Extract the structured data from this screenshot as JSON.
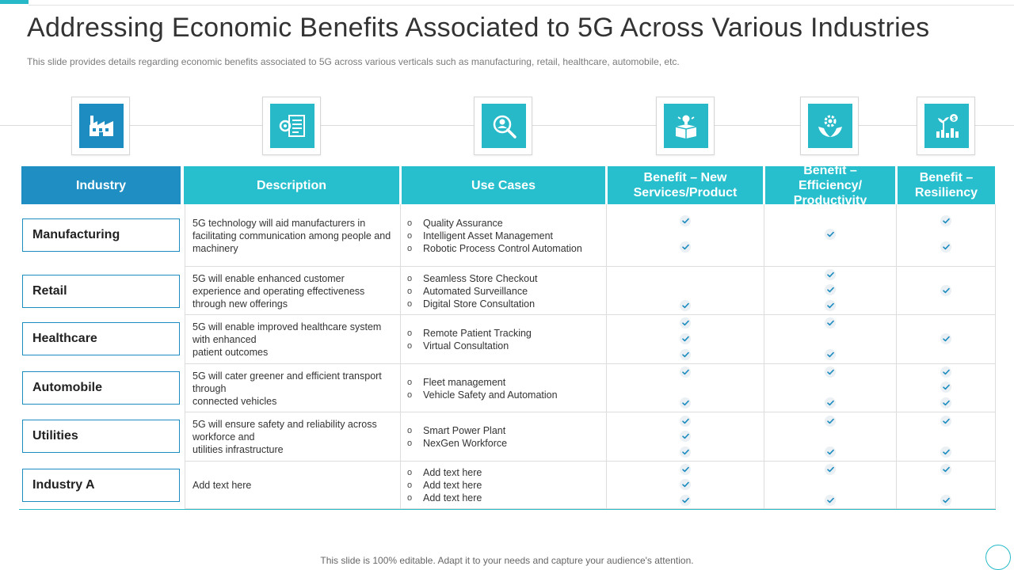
{
  "title": "Addressing Economic Benefits Associated to 5G Across Various Industries",
  "subtitle": "This slide provides details regarding economic benefits associated to 5G across various verticals such as manufacturing, retail, healthcare, automobile, etc.",
  "icons": [
    "factory-icon",
    "document-settings-icon",
    "magnifier-person-icon",
    "idea-box-icon",
    "hands-gear-icon",
    "plant-money-icon"
  ],
  "headers": {
    "industry": "Industry",
    "description": "Description",
    "use_cases": "Use Cases",
    "benefit_new": "Benefit – New Services/Product",
    "benefit_efficiency": "Benefit – Efficiency/ Productivity",
    "benefit_resiliency": "Benefit – Resiliency"
  },
  "rows": [
    {
      "industry": "Manufacturing",
      "description": [
        "5G technology will aid manufacturers in facilitating communication among people and machinery"
      ],
      "use_cases": [
        "Quality Assurance",
        "Intelligent Asset Management",
        "Robotic Process Control Automation"
      ],
      "checks": {
        "new": 2,
        "efficiency": 1,
        "resiliency": 2
      }
    },
    {
      "industry": "Retail",
      "description": [
        "5G will enable enhanced customer experience and operating effectiveness through new offerings"
      ],
      "use_cases": [
        "Seamless Store Checkout",
        "Automated Surveillance",
        "Digital Store Consultation"
      ],
      "checks": {
        "new": 1,
        "efficiency": 3,
        "resiliency": 1
      }
    },
    {
      "industry": "Healthcare",
      "description": [
        "5G will enable improved healthcare system with enhanced",
        "patient outcomes"
      ],
      "use_cases": [
        "Remote Patient Tracking",
        "Virtual Consultation"
      ],
      "checks": {
        "new": 3,
        "efficiency": 2,
        "resiliency": 1
      }
    },
    {
      "industry": "Automobile",
      "description": [
        "5G will cater greener and efficient transport through",
        "connected vehicles"
      ],
      "use_cases": [
        "Fleet management",
        "Vehicle Safety and Automation"
      ],
      "checks": {
        "new": 2,
        "efficiency": 2,
        "resiliency": 3
      }
    },
    {
      "industry": "Utilities",
      "description": [
        "5G will ensure safety and reliability across workforce and",
        "utilities infrastructure"
      ],
      "use_cases": [
        "Smart Power Plant",
        "NexGen Workforce"
      ],
      "checks": {
        "new": 3,
        "efficiency": 2,
        "resiliency": 2
      }
    },
    {
      "industry": "Industry A",
      "description": [
        "Add text here"
      ],
      "use_cases": [
        "Add text here",
        "Add text here",
        "Add text here"
      ],
      "checks": {
        "new": 3,
        "efficiency": 2,
        "resiliency": 2
      }
    }
  ],
  "footer": "This slide is 100% editable. Adapt it to your needs and capture your audience's attention.",
  "colors": {
    "accent": "#27bfcd",
    "blue": "#1e8ec3"
  }
}
